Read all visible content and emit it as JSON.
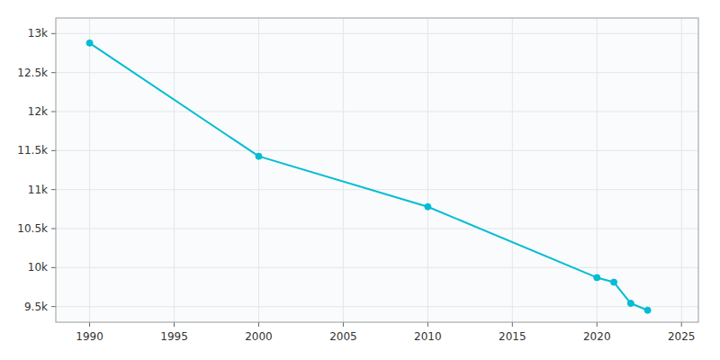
{
  "chart_data": {
    "type": "line",
    "x": [
      1990,
      2000,
      2010,
      2020,
      2021,
      2022,
      2023
    ],
    "values": [
      12879,
      11427,
      10780,
      9872,
      9813,
      9542,
      9453
    ],
    "color": "#00BCD4",
    "marker": "circle",
    "xlim": [
      1988,
      2026
    ],
    "ylim": [
      9300,
      13200
    ],
    "xticks": [
      1990,
      1995,
      2000,
      2005,
      2010,
      2015,
      2020,
      2025
    ],
    "yticks": [
      {
        "value": 9500,
        "label": "9.5k"
      },
      {
        "value": 10000,
        "label": "10k"
      },
      {
        "value": 10500,
        "label": "10.5k"
      },
      {
        "value": 11000,
        "label": "11k"
      },
      {
        "value": 11500,
        "label": "11.5k"
      },
      {
        "value": 12000,
        "label": "12k"
      },
      {
        "value": 12500,
        "label": "12.5k"
      },
      {
        "value": 13000,
        "label": "13k"
      }
    ],
    "grid": true
  }
}
